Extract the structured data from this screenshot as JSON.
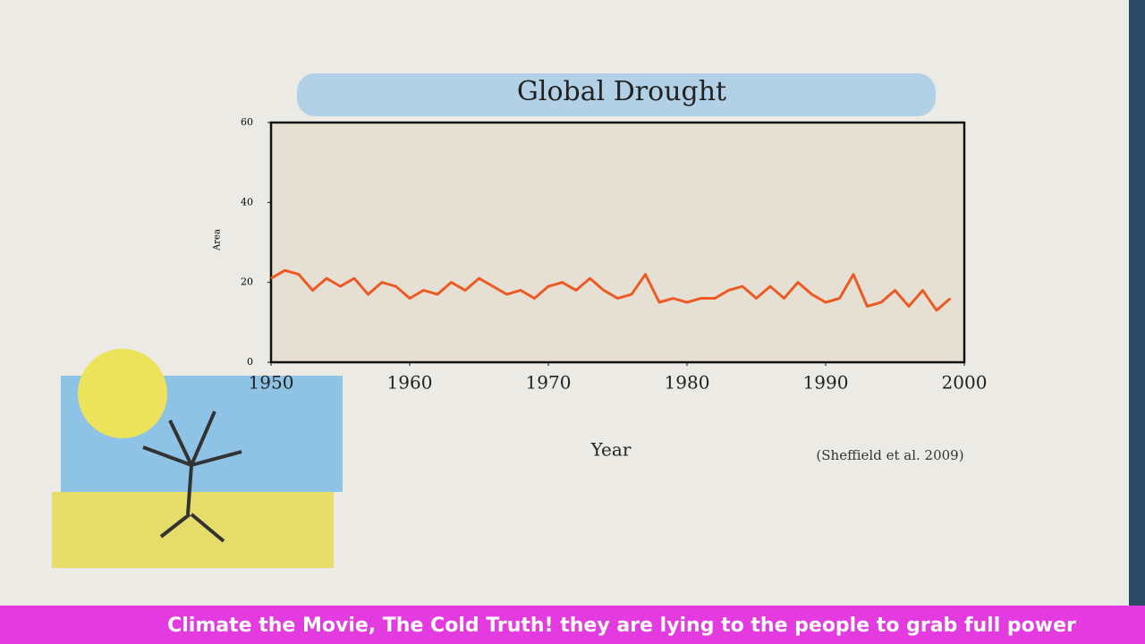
{
  "chart_data": {
    "type": "line",
    "title": "Global Drought",
    "ylabel": "Area",
    "xlabel": "Year",
    "annotation": "(Sheffield et al. 2009)",
    "x": [
      1950,
      1951,
      1952,
      1953,
      1954,
      1955,
      1956,
      1957,
      1958,
      1959,
      1960,
      1961,
      1962,
      1963,
      1964,
      1965,
      1966,
      1967,
      1968,
      1969,
      1970,
      1971,
      1972,
      1973,
      1974,
      1975,
      1976,
      1977,
      1978,
      1979,
      1980,
      1981,
      1982,
      1983,
      1984,
      1985,
      1986,
      1987,
      1988,
      1989,
      1990,
      1991,
      1992,
      1993,
      1994,
      1995,
      1996,
      1997,
      1998,
      1999
    ],
    "series": [
      {
        "name": "Area",
        "color": "#ee5a24",
        "values": [
          21,
          23,
          22,
          18,
          21,
          19,
          21,
          17,
          20,
          19,
          16,
          18,
          17,
          20,
          18,
          21,
          19,
          17,
          18,
          16,
          19,
          20,
          18,
          21,
          18,
          16,
          17,
          22,
          15,
          16,
          15,
          16,
          16,
          18,
          19,
          16,
          19,
          16,
          20,
          17,
          15,
          16,
          22,
          14,
          15,
          18,
          14,
          18,
          13,
          16
        ]
      }
    ],
    "xlim": [
      1950,
      2000
    ],
    "xticks": [
      1950,
      1960,
      1970,
      1980,
      1990,
      2000
    ],
    "ylim": [
      0,
      60
    ],
    "yticks": [
      0,
      20,
      40,
      60
    ]
  },
  "banner": "Climate the Movie, The Cold Truth! they are lying to the people to grab full power"
}
